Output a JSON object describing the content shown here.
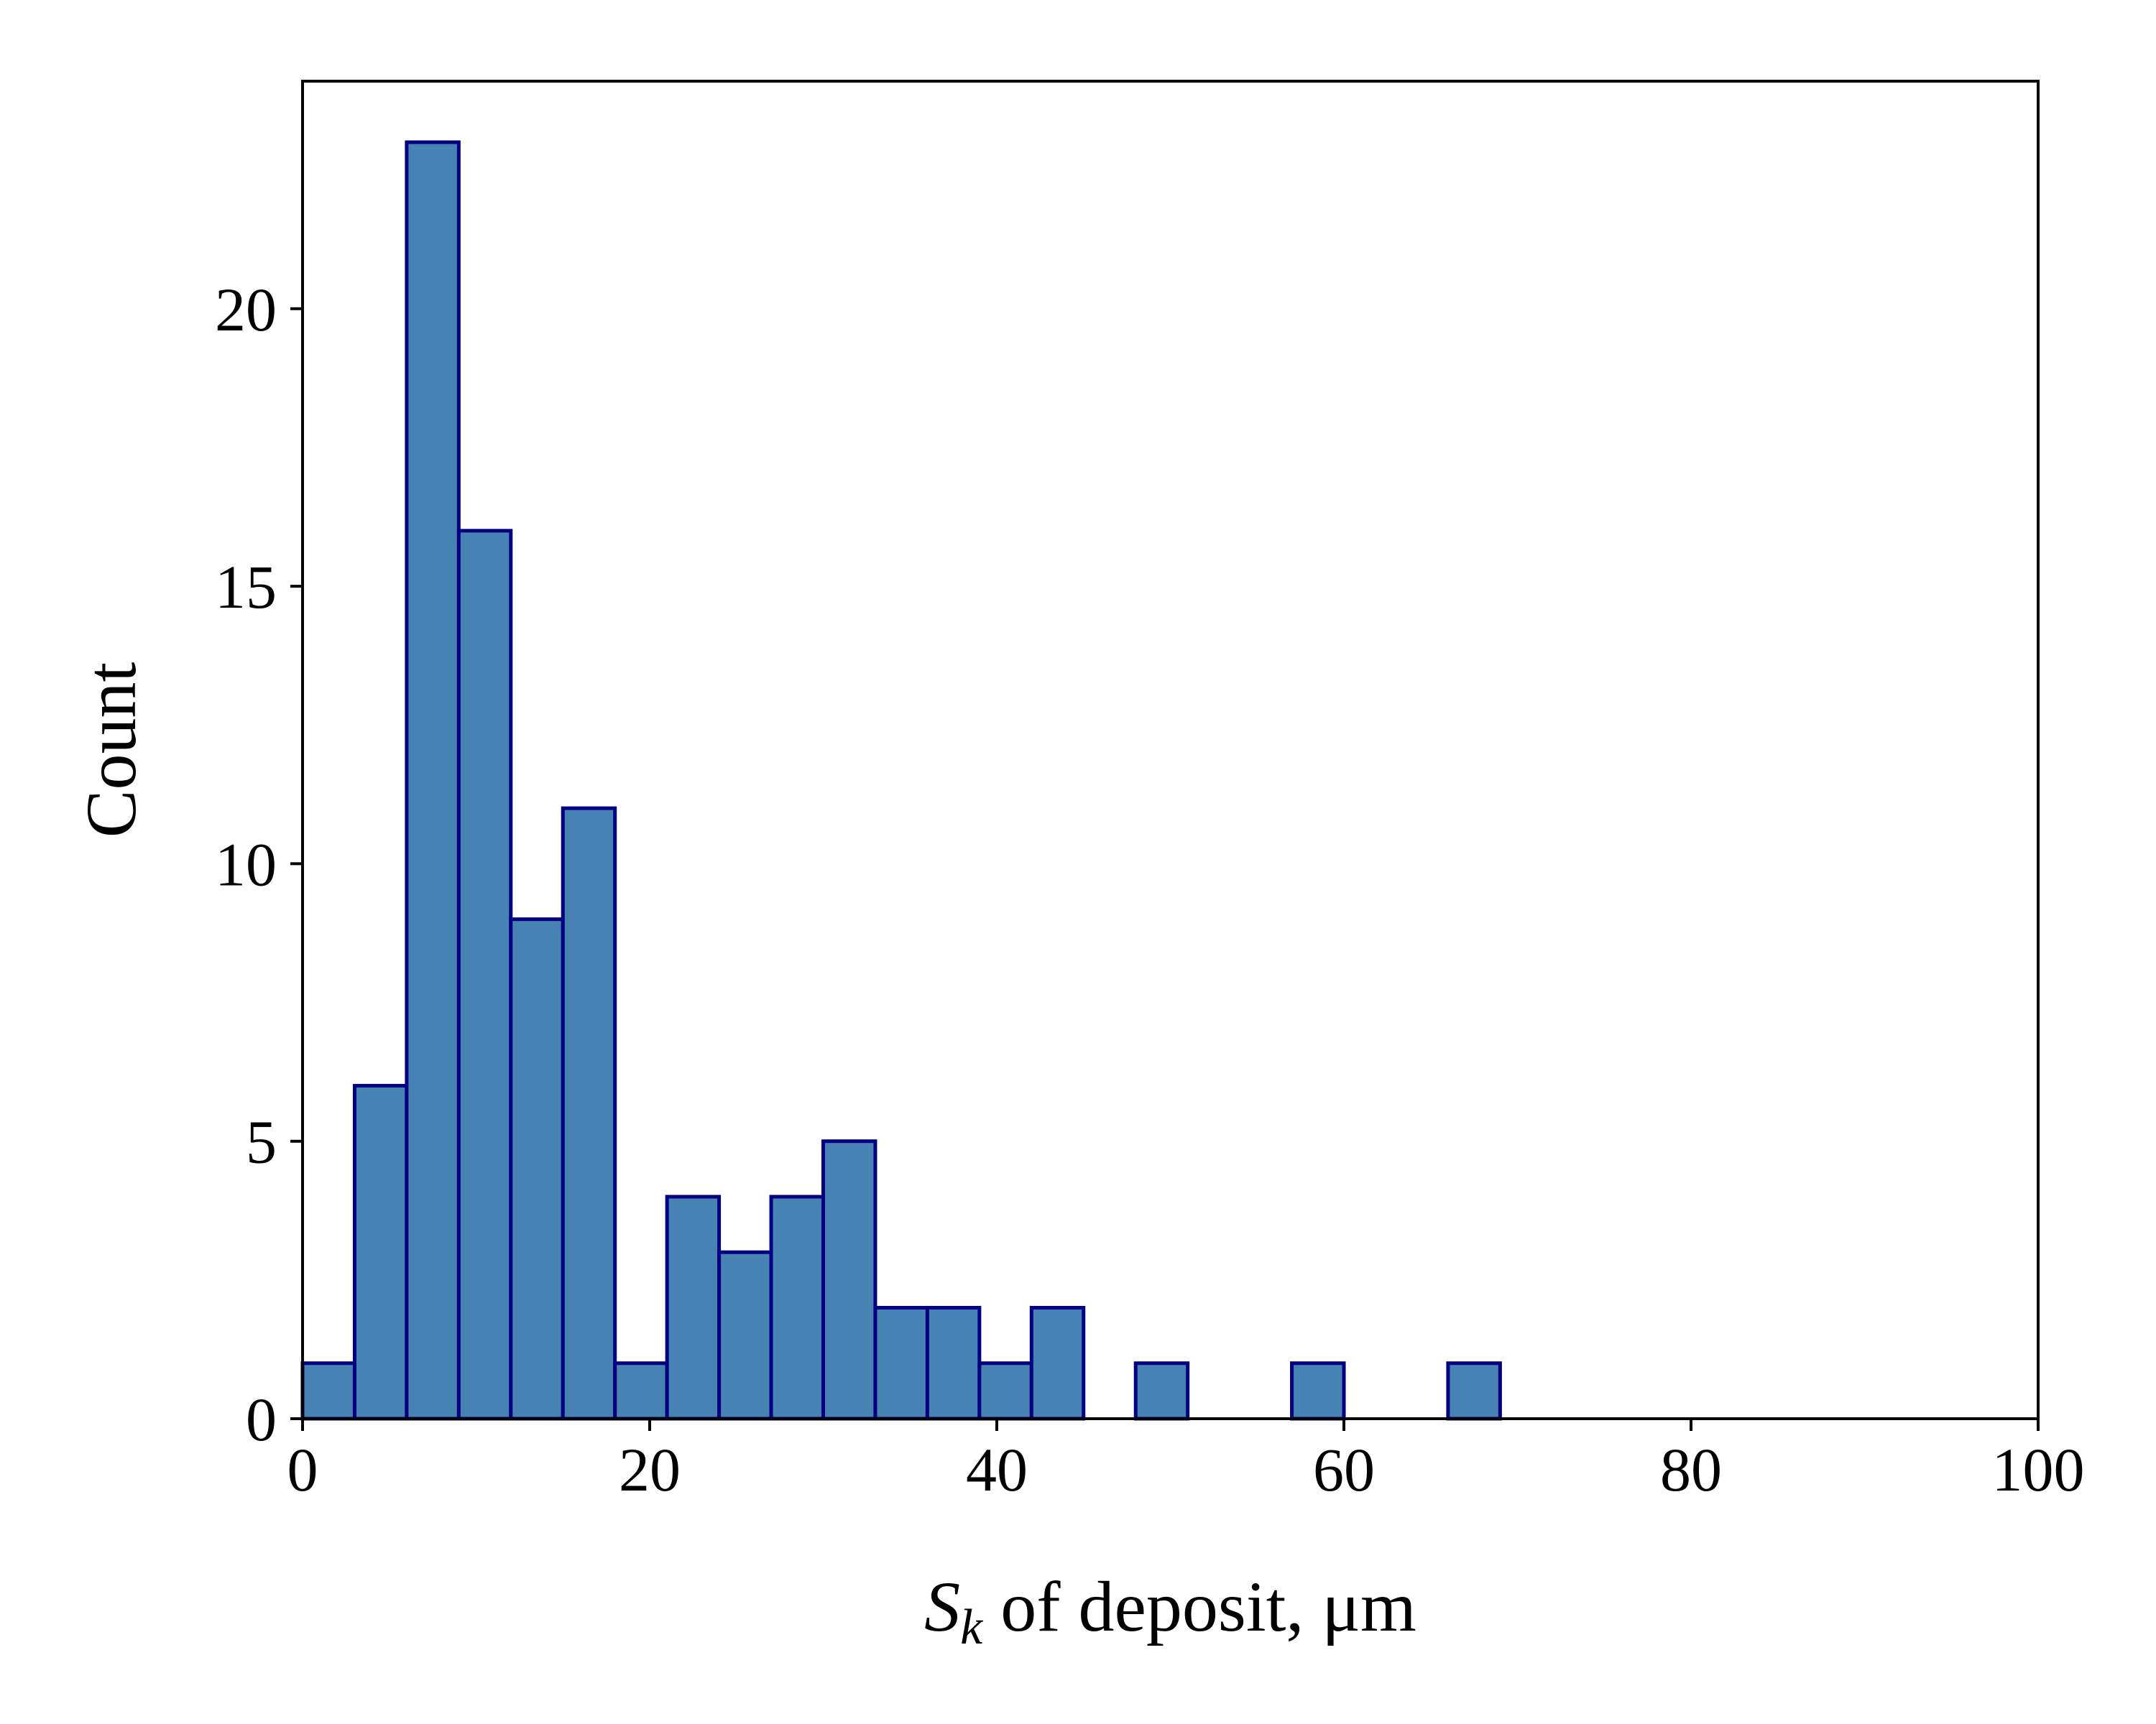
{
  "chart_data": {
    "type": "bar",
    "subtype": "histogram",
    "bin_width": 3,
    "bins": [
      {
        "start": 0,
        "end": 3,
        "count": 1
      },
      {
        "start": 3,
        "end": 6,
        "count": 6
      },
      {
        "start": 6,
        "end": 9,
        "count": 23
      },
      {
        "start": 9,
        "end": 12,
        "count": 16
      },
      {
        "start": 12,
        "end": 15,
        "count": 9
      },
      {
        "start": 15,
        "end": 18,
        "count": 11
      },
      {
        "start": 18,
        "end": 21,
        "count": 1
      },
      {
        "start": 21,
        "end": 24,
        "count": 4
      },
      {
        "start": 24,
        "end": 27,
        "count": 3
      },
      {
        "start": 27,
        "end": 30,
        "count": 4
      },
      {
        "start": 30,
        "end": 33,
        "count": 5
      },
      {
        "start": 33,
        "end": 36,
        "count": 2
      },
      {
        "start": 36,
        "end": 39,
        "count": 2
      },
      {
        "start": 39,
        "end": 42,
        "count": 1
      },
      {
        "start": 42,
        "end": 45,
        "count": 2
      },
      {
        "start": 45,
        "end": 48,
        "count": 0
      },
      {
        "start": 48,
        "end": 51,
        "count": 1
      },
      {
        "start": 51,
        "end": 54,
        "count": 0
      },
      {
        "start": 54,
        "end": 57,
        "count": 0
      },
      {
        "start": 57,
        "end": 60,
        "count": 1
      },
      {
        "start": 60,
        "end": 63,
        "count": 0
      },
      {
        "start": 63,
        "end": 66,
        "count": 0
      },
      {
        "start": 66,
        "end": 69,
        "count": 1
      }
    ],
    "xlabel": {
      "main": "S",
      "sub": "k",
      "rest": " of deposit, μm"
    },
    "ylabel": "Count",
    "xlim": [
      0,
      100
    ],
    "ylim": [
      0,
      24.1
    ],
    "xticks": [
      0,
      20,
      40,
      60,
      80,
      100
    ],
    "yticks": [
      0,
      5,
      10,
      15,
      20
    ],
    "grid": false,
    "legend": "none",
    "colors": {
      "bar_fill": "#4682b4",
      "bar_edge": "#000080",
      "axis": "#000000"
    }
  }
}
